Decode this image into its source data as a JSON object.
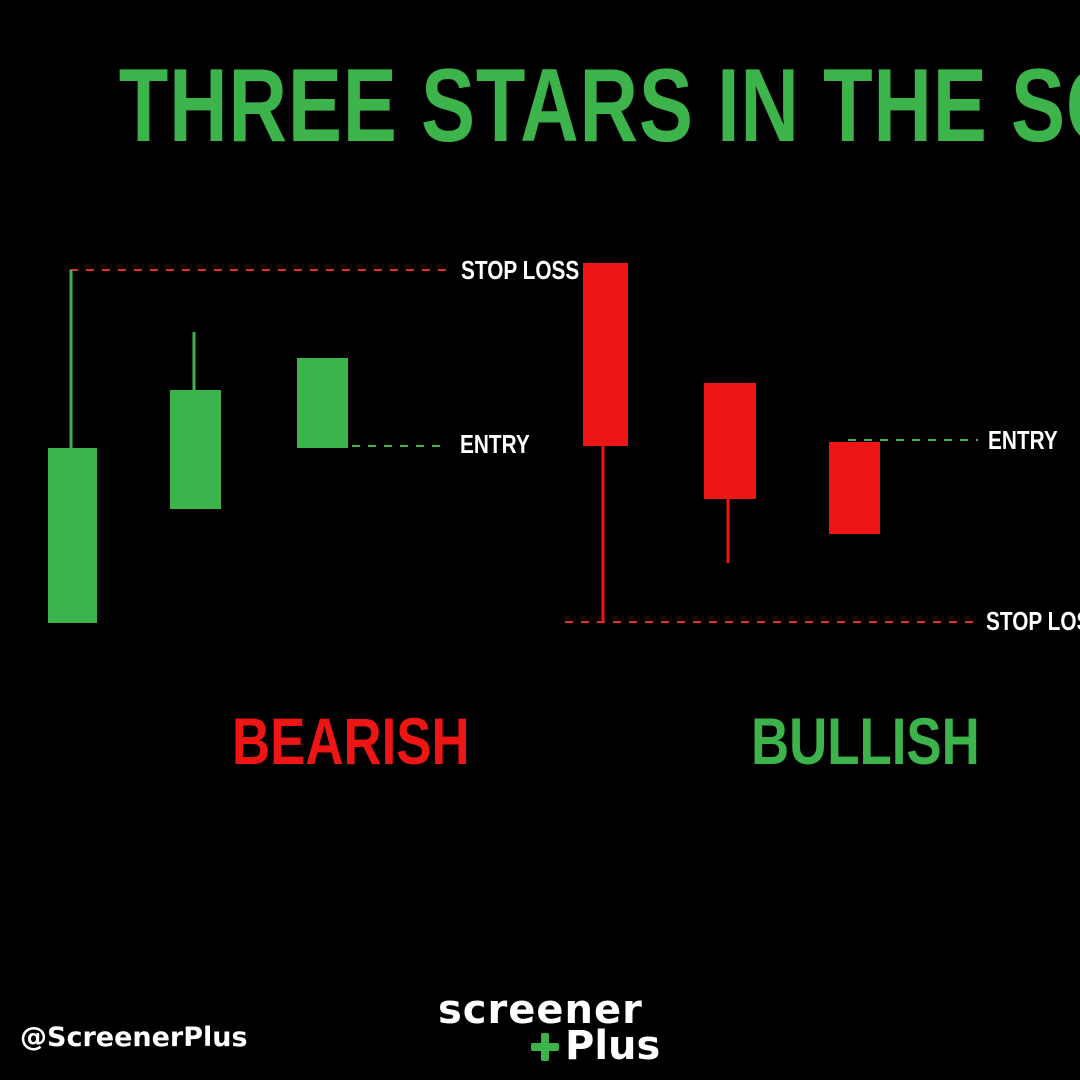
{
  "title": "THREE STARS IN THE SOUTH",
  "colors": {
    "bull": "#3cb44b",
    "bear": "#ee1515",
    "text": "#ffffff",
    "background": "#000000"
  },
  "bearish": {
    "label": "BEARISH",
    "stop_loss_label": "STOP LOSS",
    "entry_label": "ENTRY"
  },
  "bullish": {
    "label": "BULLISH",
    "stop_loss_label": "STOP LOSS",
    "entry_label": "ENTRY"
  },
  "footer": {
    "handle": "@ScreenerPlus",
    "logo_top": "screener",
    "logo_bottom": "Plus",
    "logo_icon": "plus-icon"
  }
}
